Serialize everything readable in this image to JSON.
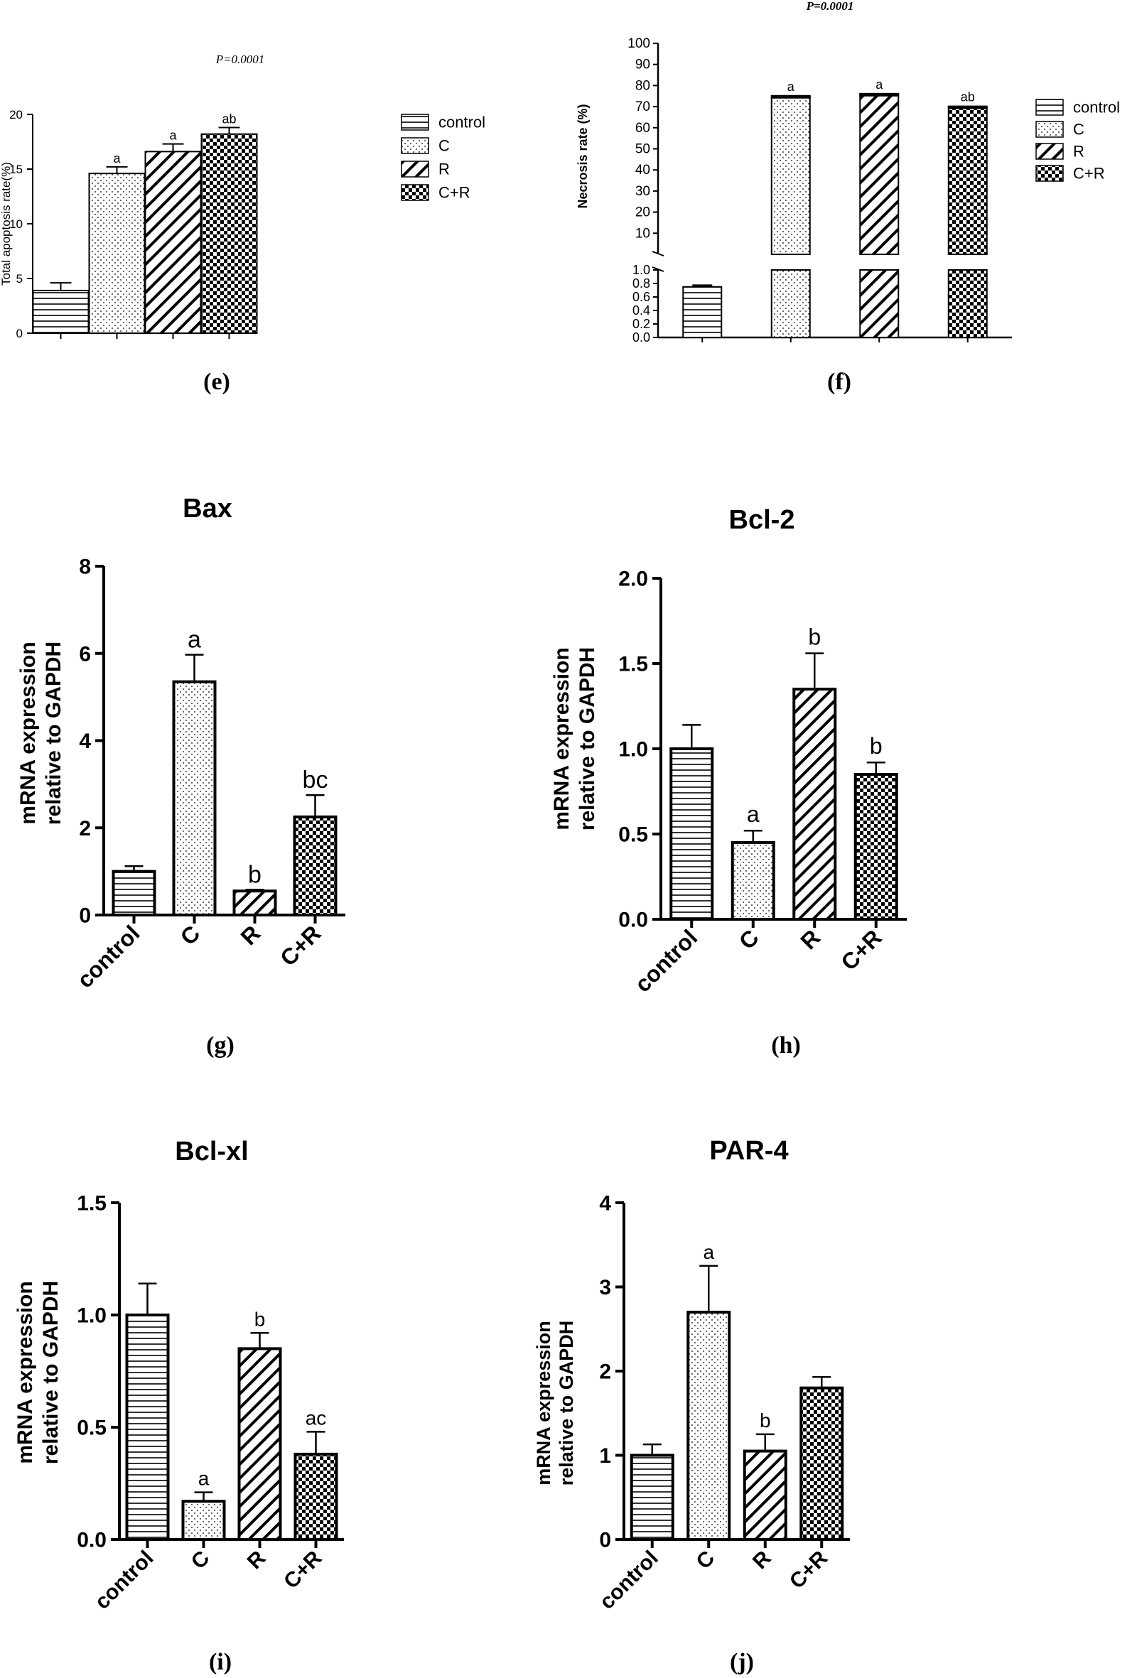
{
  "colors": {
    "ink": "#000000",
    "paper": "#ffffff"
  },
  "chart_data": [
    {
      "id": "e",
      "type": "bar",
      "panel_label": "(e)",
      "p_value": "P=0.0001",
      "title": "",
      "xlabel": "",
      "ylabel": "Total apoptosis rate(%)",
      "ylim": [
        0,
        20
      ],
      "yticks": [
        0,
        5,
        10,
        15,
        20
      ],
      "categories": [
        "control",
        "C",
        "R",
        "C+R"
      ],
      "values": [
        3.9,
        14.6,
        16.6,
        18.2
      ],
      "errors": [
        0.7,
        0.6,
        0.7,
        0.6
      ],
      "letters": [
        "",
        "a",
        "a",
        "ab"
      ],
      "patterns": [
        "hlines",
        "dots",
        "diag",
        "checker"
      ],
      "legend": [
        "control",
        "C",
        "R",
        "C+R"
      ],
      "legend_position": "right",
      "show_xtick_labels": false,
      "grid": false
    },
    {
      "id": "f",
      "type": "bar",
      "panel_label": "(f)",
      "p_value": "P=0.0001",
      "title": "",
      "xlabel": "",
      "ylabel": "Necrosis rate (%)",
      "broken_axis": true,
      "upper_ylim": [
        0,
        100
      ],
      "upper_yticks": [
        10,
        20,
        30,
        40,
        50,
        60,
        70,
        80,
        90,
        100
      ],
      "lower_ylim": [
        0,
        1.0
      ],
      "lower_yticks": [
        0.0,
        0.2,
        0.4,
        0.6,
        0.8,
        1.0
      ],
      "categories": [
        "control",
        "C",
        "R",
        "C+R"
      ],
      "values": [
        0.75,
        74.5,
        75.5,
        69.5
      ],
      "errors": [
        0.02,
        1.0,
        1.0,
        1.0
      ],
      "letters": [
        "",
        "a",
        "a",
        "ab"
      ],
      "patterns": [
        "hlines",
        "dots",
        "diag",
        "checker"
      ],
      "legend": [
        "control",
        "C",
        "R",
        "C+R"
      ],
      "legend_position": "right",
      "show_xtick_labels": false,
      "grid": false
    },
    {
      "id": "g",
      "type": "bar",
      "panel_label": "(g)",
      "title": "Bax",
      "xlabel": "",
      "ylabel": [
        "mRNA expression",
        "relative to GAPDH"
      ],
      "ylim": [
        0,
        8
      ],
      "yticks": [
        0,
        2,
        4,
        6,
        8
      ],
      "categories": [
        "control",
        "C",
        "R",
        "C+R"
      ],
      "values": [
        1.0,
        5.35,
        0.55,
        2.25
      ],
      "errors": [
        0.12,
        0.62,
        0.03,
        0.5
      ],
      "letters": [
        "",
        "a",
        "b",
        "bc"
      ],
      "patterns": [
        "hlines",
        "dots",
        "diag",
        "checker"
      ],
      "show_xtick_labels": true,
      "grid": false
    },
    {
      "id": "h",
      "type": "bar",
      "panel_label": "(h)",
      "title": "Bcl-2",
      "xlabel": "",
      "ylabel": [
        "mRNA expression",
        "relative to GAPDH"
      ],
      "ylim": [
        0,
        2.0
      ],
      "yticks": [
        0.0,
        0.5,
        1.0,
        1.5,
        2.0
      ],
      "categories": [
        "control",
        "C",
        "R",
        "C+R"
      ],
      "values": [
        1.0,
        0.45,
        1.35,
        0.85
      ],
      "errors": [
        0.14,
        0.07,
        0.21,
        0.07
      ],
      "letters": [
        "",
        "a",
        "b",
        "b"
      ],
      "patterns": [
        "hlines",
        "dots",
        "diag",
        "checker"
      ],
      "show_xtick_labels": true,
      "grid": false
    },
    {
      "id": "i",
      "type": "bar",
      "panel_label": "(i)",
      "title": "Bcl-xl",
      "xlabel": "",
      "ylabel": [
        "mRNA expression",
        "relative to GAPDH"
      ],
      "ylim": [
        0,
        1.5
      ],
      "yticks": [
        0.0,
        0.5,
        1.0,
        1.5
      ],
      "categories": [
        "control",
        "C",
        "R",
        "C+R"
      ],
      "values": [
        1.0,
        0.17,
        0.85,
        0.38
      ],
      "errors": [
        0.14,
        0.04,
        0.07,
        0.1
      ],
      "letters": [
        "",
        "a",
        "b",
        "ac"
      ],
      "patterns": [
        "hlines",
        "dots",
        "diag",
        "checker"
      ],
      "show_xtick_labels": true,
      "grid": false
    },
    {
      "id": "j",
      "type": "bar",
      "panel_label": "(j)",
      "title": "PAR-4",
      "xlabel": "",
      "ylabel": [
        "mRNA expression",
        "relative to GAPDH"
      ],
      "ylim": [
        0,
        4
      ],
      "yticks": [
        0,
        1,
        2,
        3,
        4
      ],
      "categories": [
        "control",
        "C",
        "R",
        "C+R"
      ],
      "values": [
        1.0,
        2.7,
        1.05,
        1.8
      ],
      "errors": [
        0.13,
        0.55,
        0.2,
        0.13
      ],
      "letters": [
        "",
        "a",
        "b",
        ""
      ],
      "patterns": [
        "hlines",
        "dots",
        "diag",
        "checker"
      ],
      "show_xtick_labels": true,
      "grid": false
    }
  ]
}
